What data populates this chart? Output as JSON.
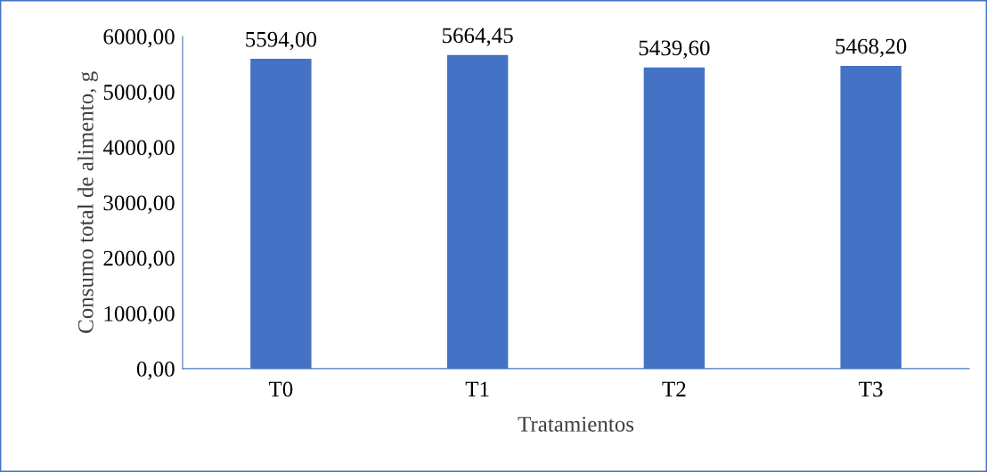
{
  "chart_data": {
    "type": "bar",
    "xlabel": "Tratamientos",
    "ylabel": "Consumo total de alimento, g",
    "categories": [
      "T0",
      "T1",
      "T2",
      "T3"
    ],
    "values": [
      5594.0,
      5664.45,
      5439.6,
      5468.2
    ],
    "value_labels": [
      "5594,00",
      "5664,45",
      "5439,60",
      "5468,20"
    ],
    "color": "#4472c4",
    "ylim": [
      0,
      6000
    ],
    "yticks": [
      {
        "value": 0,
        "label": "0,00"
      },
      {
        "value": 1000,
        "label": "1000,00"
      },
      {
        "value": 2000,
        "label": "2000,00"
      },
      {
        "value": 3000,
        "label": "3000,00"
      },
      {
        "value": 4000,
        "label": "4000,00"
      },
      {
        "value": 5000,
        "label": "5000,00"
      },
      {
        "value": 6000,
        "label": "6000,00"
      }
    ],
    "grid": false,
    "legend": false
  }
}
